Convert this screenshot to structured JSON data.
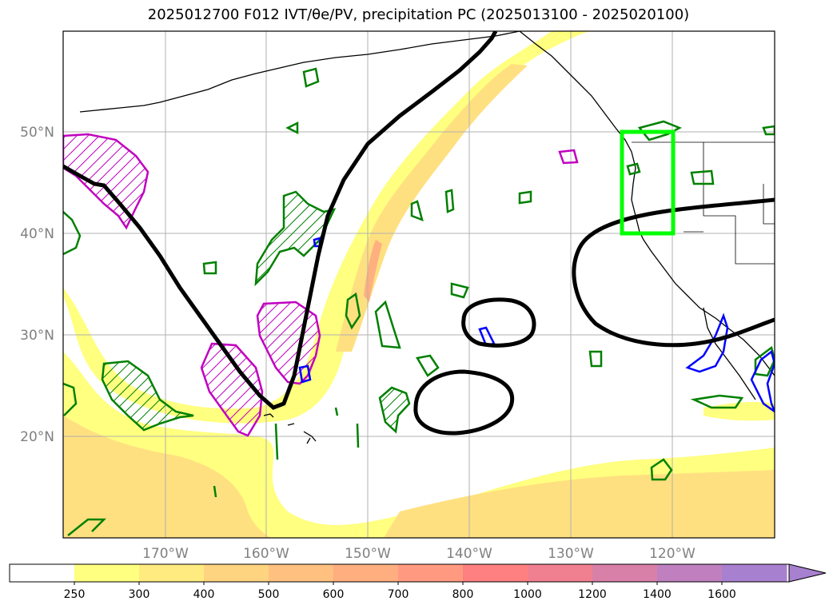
{
  "title": "2025012700 F012 IVT/θe/PV, precipitation PC (2025013100 - 2025020100)",
  "lat_labels": [
    {
      "text": "50°N",
      "lat": 50
    },
    {
      "text": "40°N",
      "lat": 40
    },
    {
      "text": "30°N",
      "lat": 30
    },
    {
      "text": "20°N",
      "lat": 20
    }
  ],
  "lon_labels": [
    {
      "text": "170°W",
      "lon": -170
    },
    {
      "text": "160°W",
      "lon": -160
    },
    {
      "text": "150°W",
      "lon": -150
    },
    {
      "text": "140°W",
      "lon": -140
    },
    {
      "text": "130°W",
      "lon": -130
    },
    {
      "text": "120°W",
      "lon": -120
    }
  ],
  "colorbar": {
    "levels": [
      "250",
      "300",
      "400",
      "500",
      "600",
      "700",
      "800",
      "1000",
      "1200",
      "1400",
      "1600"
    ],
    "colors": [
      "#ffffff",
      "#ffff80",
      "#ffeb80",
      "#ffd480",
      "#ffc080",
      "#ffae80",
      "#ff9a80",
      "#ff8080",
      "#f08090",
      "#d880a8",
      "#c080c0",
      "#a880d0"
    ]
  },
  "colors": {
    "ivt_light": "#ffff80",
    "ivt_mid": "#ffe080",
    "ivt_strong": "#ffc080",
    "theta_e_contour": "#000000",
    "pv_contour": "#008000",
    "precip_contour": "#c000c0",
    "neg_contour": "#0000ff",
    "target_box": "#00ff00"
  }
}
